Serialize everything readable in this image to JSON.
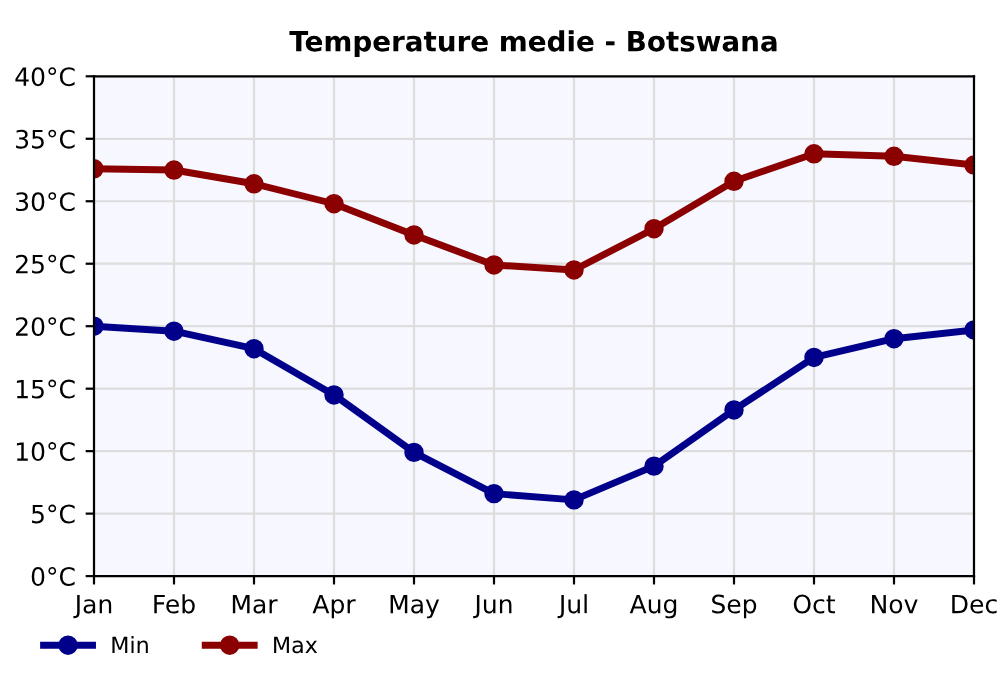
{
  "chart_data": {
    "type": "line",
    "title": "Temperature medie - Botswana",
    "categories": [
      "Jan",
      "Feb",
      "Mar",
      "Apr",
      "May",
      "Jun",
      "Jul",
      "Aug",
      "Sep",
      "Oct",
      "Nov",
      "Dec"
    ],
    "series": [
      {
        "name": "Min",
        "color": "#00008b",
        "values": [
          20.0,
          19.6,
          18.2,
          14.5,
          9.9,
          6.6,
          6.1,
          8.8,
          13.3,
          17.5,
          19.0,
          19.7
        ]
      },
      {
        "name": "Max",
        "color": "#8b0000",
        "values": [
          32.6,
          32.5,
          31.4,
          29.8,
          27.3,
          24.9,
          24.5,
          27.8,
          31.6,
          33.8,
          33.6,
          32.9
        ]
      }
    ],
    "ylim": [
      0,
      40
    ],
    "yticks": [
      {
        "value": 0,
        "label": "0°C"
      },
      {
        "value": 5,
        "label": "5°C"
      },
      {
        "value": 10,
        "label": "10°C"
      },
      {
        "value": 15,
        "label": "15°C"
      },
      {
        "value": 20,
        "label": "20°C"
      },
      {
        "value": 25,
        "label": "25°C"
      },
      {
        "value": 30,
        "label": "30°C"
      },
      {
        "value": 35,
        "label": "35°C"
      },
      {
        "value": 40,
        "label": "40°C"
      }
    ],
    "grid": true,
    "legend": "bottom left",
    "marker": "circle",
    "line_style": "solid"
  }
}
